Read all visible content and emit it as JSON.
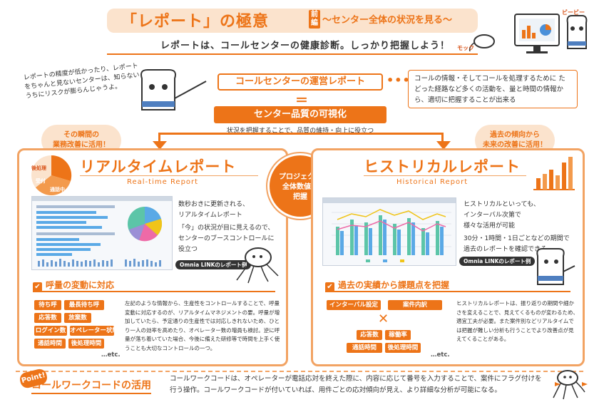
{
  "header": {
    "title": "「レポート」の極意",
    "zenpen": "前編",
    "subtitle": "〜センター全体の状況を見る〜",
    "lead": "レポートは、コールセンターの健康診断。しっかり把握しよう！",
    "char_bb": "ビービー",
    "char_mock": "モック"
  },
  "flow": {
    "note_left": "レポートの精度が低かったり、レポートをちゃんと見ないセンターは、知らないうちにリスクが膨らんじゃうよ。",
    "main_box": "コールセンターの運営レポート",
    "dots": "••••",
    "info_box": "コールの情報・そしてコールを処理するために たどった経路など多くの活動を、量と時間の情報から、適切に把握することが出来る",
    "equal": "＝",
    "vis_box": "センター品質の可視化",
    "vis_sub": "状況を把握することで、品質の維持・向上に役立つ",
    "bubble_left": [
      "その瞬間の",
      "業務改善に活用！"
    ],
    "bubble_right": [
      "過去の傾向から",
      "未来の改善に活用！"
    ]
  },
  "center_circle": [
    "プロジェクト",
    "全体数値の",
    "把握"
  ],
  "realtime": {
    "title": "リアルタイムレポート",
    "subtitle": "Real-time Report",
    "pie_labels": [
      "後処理",
      "受付",
      "通話中"
    ],
    "pie_values": [
      30,
      20,
      50
    ],
    "desc": [
      "数秒おきに更新される、",
      "リアルタイムレポート",
      "「今」の状況が目に見えるので、",
      "センターのブースコントロールに",
      "役立つ"
    ],
    "caption": "Omnia LINKのレポート例",
    "section": "呼量の変動に対応",
    "tags": [
      [
        "待ち呼",
        "最長待ち呼"
      ],
      [
        "応答数",
        "放棄数"
      ],
      [
        "ログイン数",
        "オペレーター状態"
      ],
      [
        "通話時間",
        "後処理時間"
      ]
    ],
    "etc": "…etc.",
    "text": "左記のような情報から、生産性をコントロールすることで、呼量変動に対応するのが、リアルタイムマネジメントの要。呼量が増加していたら、予定通りの生産性では対応しきれないため、ひとり一人の効率を高めたり、オペレーター数の増員も検討。逆に呼量が落ち着いていた場合、今後に備えた研修等で時間を上手く使うことも大切なコントロールの一つ。"
  },
  "historical": {
    "title": "ヒストリカルレポート",
    "subtitle": "Historical Report",
    "desc": [
      "ヒストリカルといっても、",
      "インターバル次第で",
      "様々な活用が可能",
      "30分・1時間・1日ごとなどの期間で",
      "過去のレポートを確認できる"
    ],
    "caption": "Omnia LINKのレポート例",
    "section": "過去の実績から課題点を把握",
    "tags_top": [
      "インターバル設定",
      "案件内訳"
    ],
    "cross": "✕",
    "tags_bottom": [
      [
        "応答数",
        "稼働率"
      ],
      [
        "通話時間",
        "後処理時間"
      ]
    ],
    "etc": "…etc.",
    "text": "ヒストリカルレポートは、振り返りの期間や細かさを変えることで、見えてくるものが変わるため、適宜工夫が必要。また案件別などリアルタイムでは把握が難しい分析も行うことでより改善点が見えてくることがある。"
  },
  "bottom": {
    "badge": "Point!",
    "title": "コールワークコードの活用",
    "text": "コールワークコードは、オペレーターが電話応対を終えた際に、内容に応じて番号を入力することで、案件にフラグ付けを行う操作。コールワークコードが付いていれば、用件ごとの応対傾向が見え、より詳細な分析が可能になる。"
  },
  "colors": {
    "accent": "#ed7418",
    "light": "#fbe3cd",
    "border": "#f2a363"
  }
}
